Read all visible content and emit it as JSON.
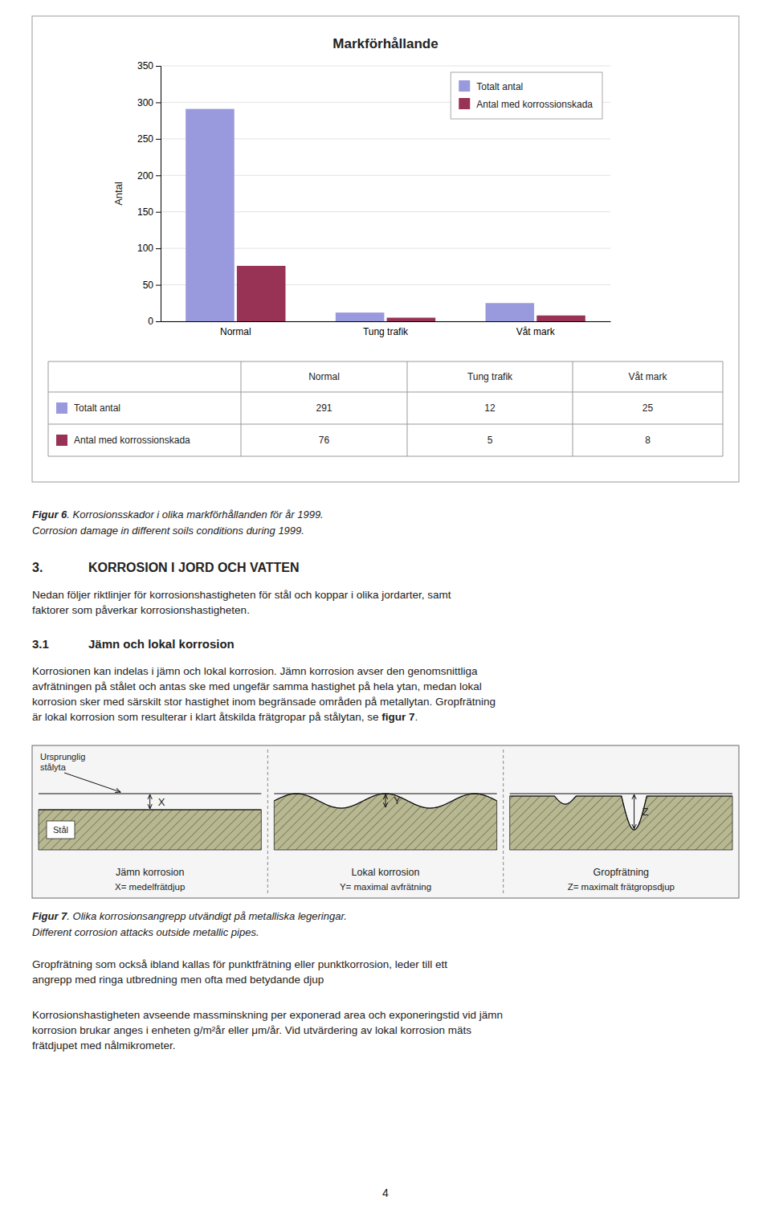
{
  "chart_data": {
    "type": "bar",
    "title": "Markförhållande",
    "ylabel": "Antal",
    "categories": [
      "Normal",
      "Tung trafik",
      "Våt mark"
    ],
    "series": [
      {
        "name": "Totalt antal",
        "color": "#9999dd",
        "values": [
          291,
          12,
          25
        ]
      },
      {
        "name": "Antal med korrossionskada",
        "color": "#993355",
        "values": [
          76,
          5,
          8
        ]
      }
    ],
    "ylim": [
      0,
      350
    ],
    "yticks": [
      0,
      50,
      100,
      150,
      200,
      250,
      300,
      350
    ],
    "grid": true,
    "legend": "upper right"
  },
  "page": {
    "fig6_caption": {
      "bold": "Figur 6",
      "text": ". Korrosionsskador i olika markförhållanden för år 1999.",
      "translation": "Corrosion damage in different soils conditions during 1999."
    },
    "section3": {
      "number": "3.",
      "heading": "KORROSION I JORD OCH VATTEN",
      "paragraph": [
        "Nedan följer riktlinjer för korrosionshastigheten för stål och koppar i olika jordarter, samt",
        "faktorer som påverkar korrosionshastigheten."
      ]
    },
    "section3_1": {
      "number": "3.1",
      "heading": "Jämn och lokal korrosion",
      "paragraph": [
        "Korrosionen kan indelas i jämn och lokal korrosion. Jämn korrosion avser den genomsnittliga",
        "avfrätningen på stålet och antas ske med ungefär samma hastighet på hela ytan, medan lokal",
        "korrosion sker med särskilt stor hastighet inom begränsade områden på metallytan. Gropfrätning",
        "är lokal korrosion som resulterar i klart åtskilda frätgropar på stålytan, se "
      ],
      "reference": "figur 7",
      "reference_end": "."
    },
    "figure7": {
      "original_surface": [
        "Ursprunglig",
        "stålyta"
      ],
      "steel": "Stål",
      "panels": [
        {
          "symbol": "X",
          "name": "Jämn korrosion",
          "definition": "X= medelfrätdjup"
        },
        {
          "symbol": "Y",
          "name": "Lokal korrosion",
          "definition": "Y= maximal avfrätning"
        },
        {
          "symbol": "Z",
          "name": "Gropfrätning",
          "definition": "Z= maximalt frätgropsdjup"
        }
      ]
    },
    "fig7_caption": {
      "bold": "Figur 7",
      "text": ". Olika korrosionsangrepp utvändigt på metalliska legeringar.",
      "translation": "Different corrosion attacks outside metallic pipes."
    },
    "paragraphs": [
      [
        "Gropfrätning som också ibland kallas för punktfrätning eller punktkorrosion, leder till ett",
        "angrepp med ringa utbredning men ofta med betydande djup"
      ],
      [
        "Korrosionshastigheten avseende massminskning per exponerad area och exponeringstid vid jämn",
        "korrosion brukar anges i enheten g/m²år eller μm/år. Vid utvärdering av lokal korrosion mäts",
        "frätdjupet med nålmikrometer."
      ]
    ],
    "page_number": "4"
  }
}
